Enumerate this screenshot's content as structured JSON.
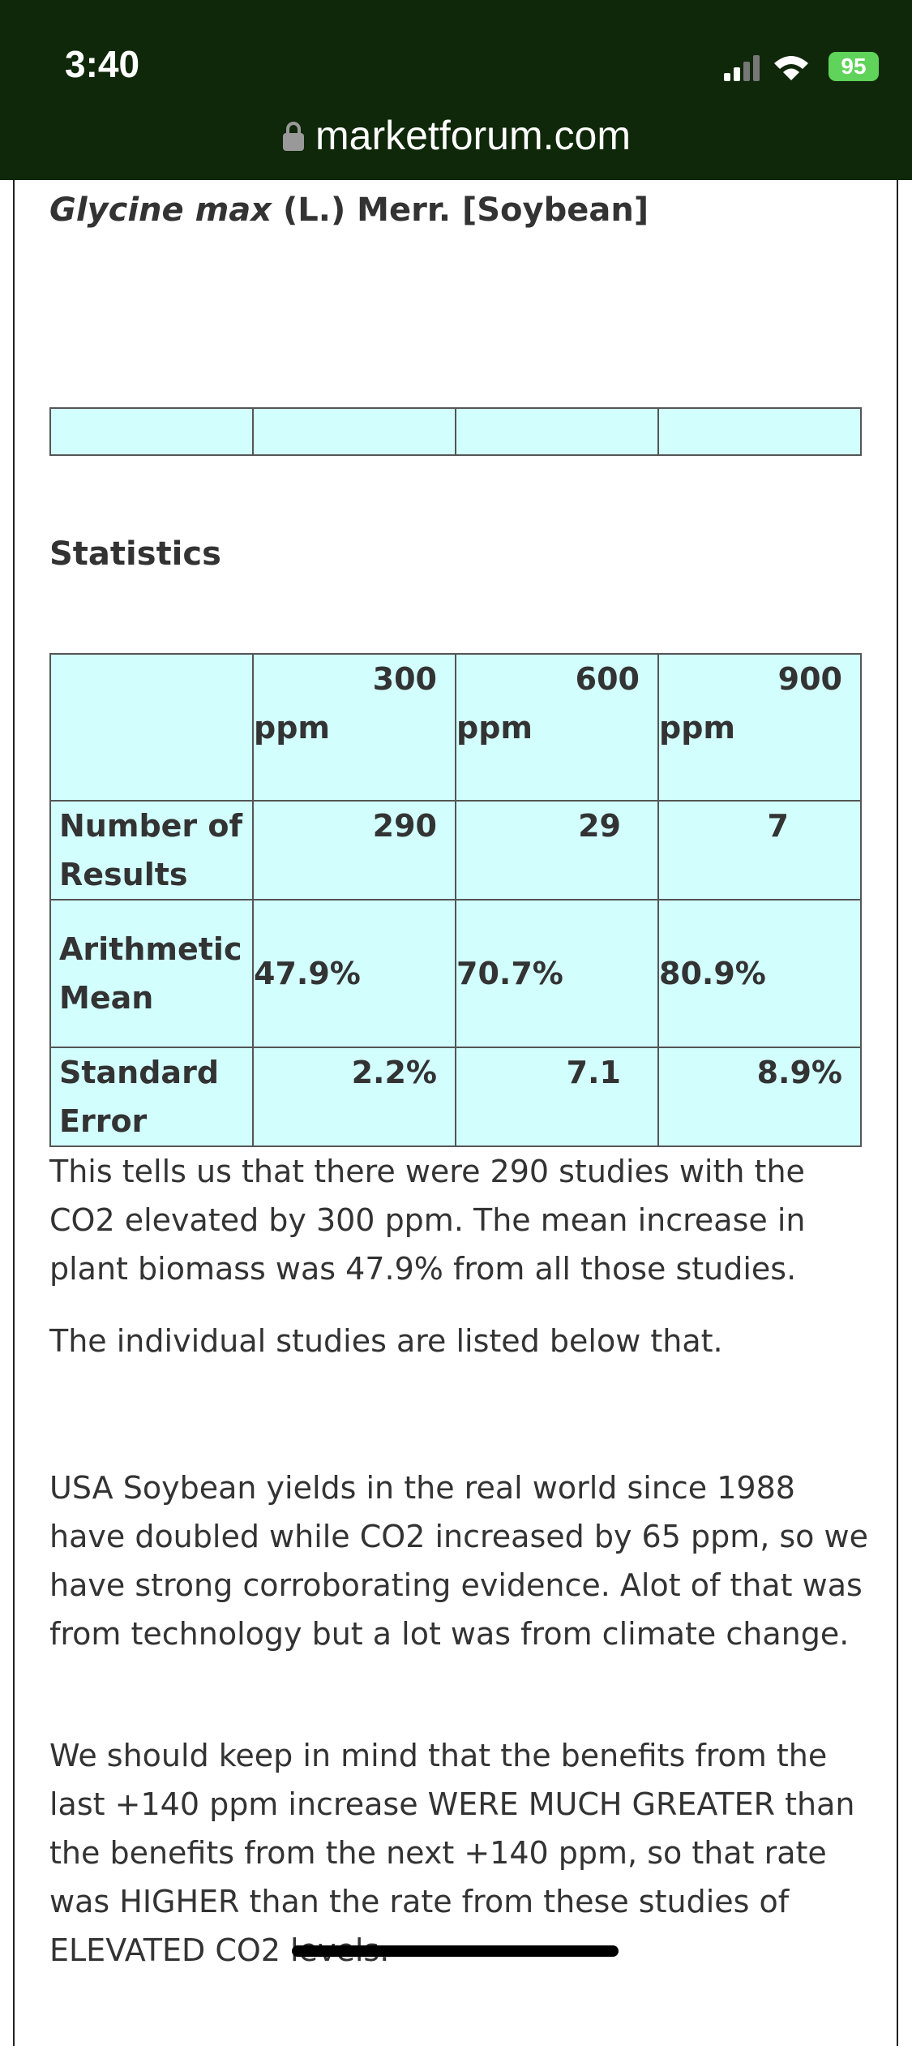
{
  "status": {
    "time": "3:40",
    "battery": "95"
  },
  "url": "marketforum.com",
  "heading": {
    "latin": "Glycine max",
    "rest": "(L.) Merr. [Soybean]"
  },
  "statistics": {
    "title": "Statistics",
    "columns": [
      {
        "number": "300",
        "unit": "ppm"
      },
      {
        "number": "600",
        "unit": "ppm"
      },
      {
        "number": "900",
        "unit": "ppm"
      }
    ],
    "rows": [
      {
        "label": "Number of Results",
        "values": [
          "290",
          "29",
          "7"
        ]
      },
      {
        "label": "Arithmetic Mean",
        "values": [
          "47.9%",
          "70.7%",
          "80.9%"
        ]
      },
      {
        "label": "Standard Error",
        "values": [
          "2.2%",
          "7.1",
          "8.9%"
        ]
      }
    ]
  },
  "paragraphs": [
    "This tells us that there were 290 studies with the CO2 elevated by 300 ppm. The mean increase in plant biomass was 47.9% from all those studies.",
    "The individual studies are listed below that.",
    "USA Soybean yields in the real world since 1988 have doubled while CO2 increased by 65 ppm, so we have strong corroborating evidence. Alot of that was from technology but a lot was from climate change.",
    "We should keep in mind that the benefits from the last +140 ppm increase WERE MUCH GREATER than the benefits from the next +140 ppm, so that rate was HIGHER than the rate from these studies of ELEVATED CO2 levels."
  ]
}
